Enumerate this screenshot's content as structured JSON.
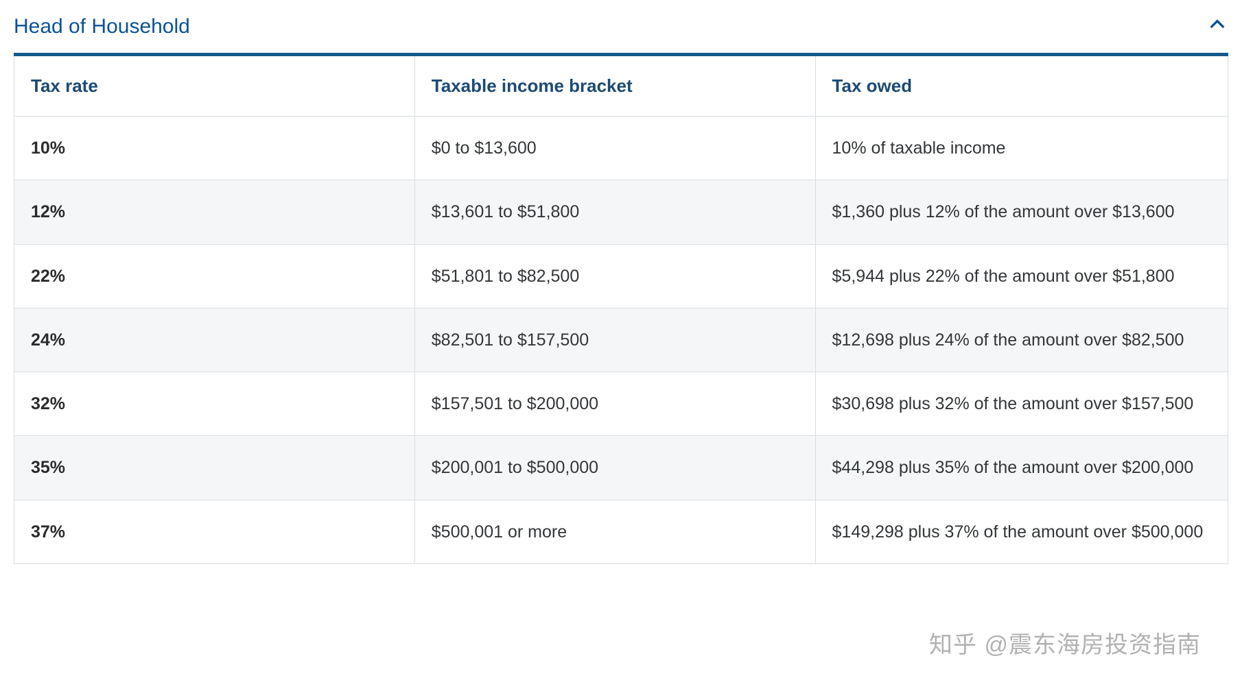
{
  "section": {
    "title": "Head of Household"
  },
  "table": {
    "columns": [
      "Tax rate",
      "Taxable income bracket",
      "Tax owed"
    ],
    "rows": [
      {
        "rate": "10%",
        "bracket": "$0 to $13,600",
        "owed": "10% of taxable income"
      },
      {
        "rate": "12%",
        "bracket": "$13,601 to $51,800",
        "owed": "$1,360 plus 12% of the amount over $13,600"
      },
      {
        "rate": "22%",
        "bracket": "$51,801 to $82,500",
        "owed": "$5,944 plus 22% of the amount over $51,800"
      },
      {
        "rate": "24%",
        "bracket": "$82,501 to $157,500",
        "owed": "$12,698 plus 24% of the amount over $82,500"
      },
      {
        "rate": "32%",
        "bracket": "$157,501 to $200,000",
        "owed": "$30,698 plus 32% of the amount over $157,500"
      },
      {
        "rate": "35%",
        "bracket": "$200,001 to $500,000",
        "owed": "$44,298 plus 35% of the amount over $200,000"
      },
      {
        "rate": "37%",
        "bracket": "$500,001 or more",
        "owed": "$149,298 plus 37% of the amount over $500,000"
      }
    ]
  },
  "watermark": "知乎 @震东海房投资指南",
  "colors": {
    "title": "#0a5296",
    "header_text": "#1c4a73",
    "body_text": "#333638",
    "border": "#d8dde3",
    "top_border": "#155a8a",
    "row_alt_bg": "#f5f6f8",
    "row_bg": "#ffffff"
  }
}
